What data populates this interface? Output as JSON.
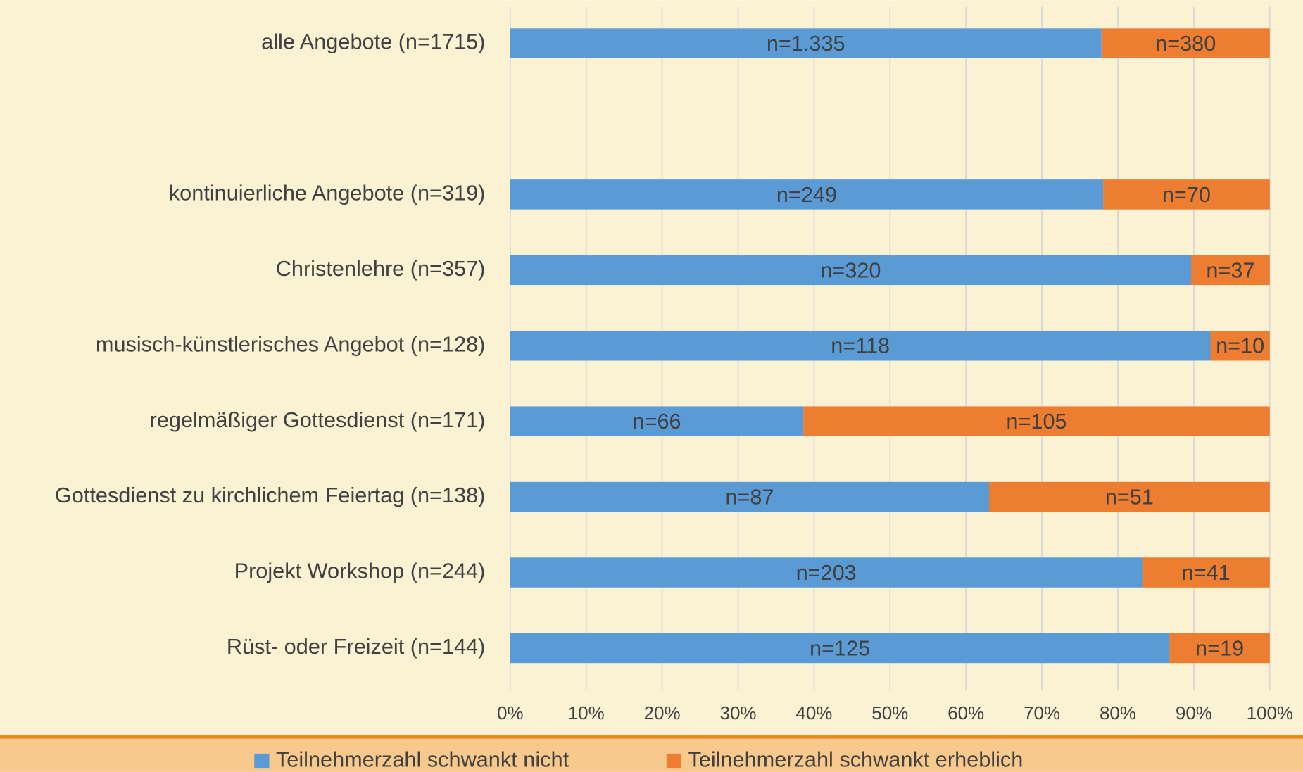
{
  "chart_data": {
    "type": "stacked_barh",
    "categories": [
      "alle Angebote (n=1715)",
      null,
      "kontinuierliche Angebote (n=319)",
      "Christenlehre (n=357)",
      "musisch-künstlerisches Angebot (n=128)",
      "regelmäßiger Gottesdienst (n=171)",
      "Gottesdienst zu kirchlichem Feiertag (n=138)",
      "Projekt Workshop (n=244)",
      "Rüst- oder Freizeit (n=144)"
    ],
    "series": [
      {
        "name": "Teilnehmerzahl schwankt nicht",
        "color": "#5b9bd5",
        "values": [
          77.84,
          null,
          78.06,
          89.64,
          92.19,
          38.6,
          63.04,
          83.2,
          86.81
        ],
        "data_labels": [
          "n=1.335",
          null,
          "n=249",
          "n=320",
          "n=118",
          "n=66",
          "n=87",
          "n=203",
          "n=125"
        ]
      },
      {
        "name": "Teilnehmerzahl schwankt erheblich",
        "color": "#ed7d31",
        "values": [
          22.16,
          null,
          21.94,
          10.36,
          7.81,
          61.4,
          36.96,
          16.8,
          13.19
        ],
        "data_labels": [
          "n=380",
          null,
          "n=70",
          "n=37",
          "n=10",
          "n=105",
          "n=51",
          "n=41",
          "n=19"
        ]
      }
    ],
    "xlim": [
      0,
      100
    ],
    "xticks": [
      {
        "value": 0,
        "label": "0%"
      },
      {
        "value": 10,
        "label": "10%"
      },
      {
        "value": 20,
        "label": "20%"
      },
      {
        "value": 30,
        "label": "30%"
      },
      {
        "value": 40,
        "label": "40%"
      },
      {
        "value": 50,
        "label": "50%"
      },
      {
        "value": 60,
        "label": "60%"
      },
      {
        "value": 70,
        "label": "70%"
      },
      {
        "value": 80,
        "label": "80%"
      },
      {
        "value": 90,
        "label": "90%"
      },
      {
        "value": 100,
        "label": "100%"
      }
    ],
    "grid": true,
    "legend": "bottom"
  }
}
